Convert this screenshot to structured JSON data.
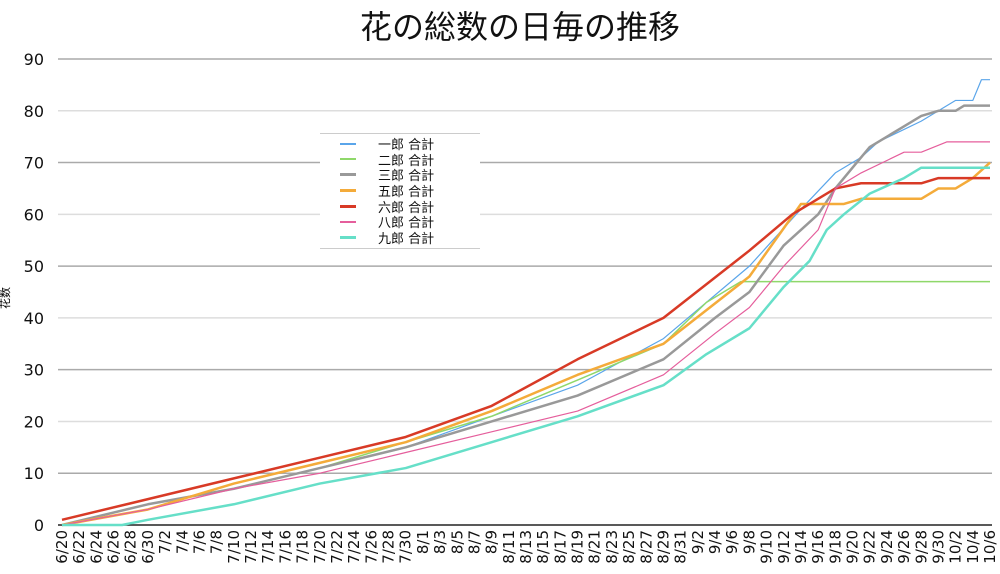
{
  "chart_data": {
    "type": "line",
    "title": "花の総数の日毎の推移",
    "xlabel": "",
    "ylabel": "花数",
    "ylim": [
      0,
      90
    ],
    "yticks": [
      0,
      10,
      20,
      30,
      40,
      50,
      60,
      70,
      80,
      90
    ],
    "start_date": "6/20",
    "x_tick_labels": [
      "6/20",
      "6/22",
      "6/24",
      "6/26",
      "6/28",
      "6/30",
      "7/2",
      "7/4",
      "7/6",
      "7/8",
      "7/10",
      "7/12",
      "7/14",
      "7/16",
      "7/18",
      "7/20",
      "7/22",
      "7/24",
      "7/26",
      "7/28",
      "7/30",
      "8/1",
      "8/3",
      "8/5",
      "8/7",
      "8/9",
      "8/11",
      "8/13",
      "8/15",
      "8/17",
      "8/19",
      "8/21",
      "8/23",
      "8/25",
      "8/27",
      "8/29",
      "8/31",
      "9/2",
      "9/4",
      "9/6",
      "9/8",
      "9/10",
      "9/12",
      "9/14",
      "9/16",
      "9/18",
      "9/20",
      "9/22",
      "9/24",
      "9/26",
      "9/28",
      "9/30",
      "10/2",
      "10/4",
      "10/6"
    ],
    "x_unit": "days since 6/20",
    "legend_position": "upper-center",
    "series": [
      {
        "name": "一郎 合計",
        "color": "#5aa5ea",
        "width": 1.2,
        "points": [
          [
            0,
            0
          ],
          [
            10,
            4
          ],
          [
            20,
            7
          ],
          [
            30,
            11
          ],
          [
            40,
            15
          ],
          [
            50,
            21
          ],
          [
            60,
            27
          ],
          [
            70,
            36
          ],
          [
            80,
            50
          ],
          [
            86,
            61
          ],
          [
            90,
            68
          ],
          [
            93,
            71
          ],
          [
            95,
            74
          ],
          [
            100,
            78
          ],
          [
            104,
            82
          ],
          [
            106,
            82
          ],
          [
            107,
            86
          ],
          [
            108,
            86
          ]
        ]
      },
      {
        "name": "二郎 合計",
        "color": "#8fd86a",
        "width": 1.5,
        "points": [
          [
            0,
            0
          ],
          [
            10,
            4
          ],
          [
            20,
            7
          ],
          [
            30,
            11
          ],
          [
            40,
            16
          ],
          [
            50,
            21
          ],
          [
            60,
            28
          ],
          [
            70,
            35
          ],
          [
            75,
            43
          ],
          [
            79,
            47
          ],
          [
            108,
            47
          ]
        ]
      },
      {
        "name": "三郎 合計",
        "color": "#999999",
        "width": 2.5,
        "points": [
          [
            0,
            0
          ],
          [
            10,
            4
          ],
          [
            20,
            7
          ],
          [
            30,
            11
          ],
          [
            40,
            15
          ],
          [
            50,
            20
          ],
          [
            60,
            25
          ],
          [
            70,
            32
          ],
          [
            76,
            40
          ],
          [
            80,
            45
          ],
          [
            84,
            54
          ],
          [
            88,
            60
          ],
          [
            90,
            65
          ],
          [
            92,
            69
          ],
          [
            94,
            73
          ],
          [
            100,
            79
          ],
          [
            102,
            80
          ],
          [
            104,
            80
          ],
          [
            105,
            81
          ],
          [
            108,
            81
          ]
        ]
      },
      {
        "name": "五郎 合計",
        "color": "#f4ab3a",
        "width": 2.5,
        "points": [
          [
            0,
            0
          ],
          [
            10,
            3
          ],
          [
            20,
            8
          ],
          [
            30,
            12
          ],
          [
            40,
            16
          ],
          [
            50,
            22
          ],
          [
            60,
            29
          ],
          [
            70,
            35
          ],
          [
            80,
            48
          ],
          [
            86,
            62
          ],
          [
            91,
            62
          ],
          [
            93,
            63
          ],
          [
            100,
            63
          ],
          [
            102,
            65
          ],
          [
            104,
            65
          ],
          [
            106,
            67
          ],
          [
            108,
            70
          ]
        ]
      },
      {
        "name": "六郎 合計",
        "color": "#d83a26",
        "width": 2.5,
        "points": [
          [
            0,
            1
          ],
          [
            10,
            5
          ],
          [
            20,
            9
          ],
          [
            30,
            13
          ],
          [
            40,
            17
          ],
          [
            50,
            23
          ],
          [
            60,
            32
          ],
          [
            70,
            40
          ],
          [
            80,
            53
          ],
          [
            85,
            60
          ],
          [
            90,
            65
          ],
          [
            93,
            66
          ],
          [
            100,
            66
          ],
          [
            102,
            67
          ],
          [
            108,
            67
          ]
        ]
      },
      {
        "name": "八郎 合計",
        "color": "#e55e9c",
        "width": 1.2,
        "points": [
          [
            0,
            0
          ],
          [
            10,
            3
          ],
          [
            20,
            7
          ],
          [
            30,
            10
          ],
          [
            40,
            14
          ],
          [
            50,
            18
          ],
          [
            60,
            22
          ],
          [
            70,
            29
          ],
          [
            76,
            37
          ],
          [
            80,
            42
          ],
          [
            84,
            50
          ],
          [
            88,
            57
          ],
          [
            90,
            65
          ],
          [
            93,
            68
          ],
          [
            98,
            72
          ],
          [
            100,
            72
          ],
          [
            103,
            74
          ],
          [
            108,
            74
          ]
        ]
      },
      {
        "name": "九郎 合計",
        "color": "#66dfc8",
        "width": 2.5,
        "points": [
          [
            0,
            0
          ],
          [
            7,
            0
          ],
          [
            10,
            1
          ],
          [
            20,
            4
          ],
          [
            30,
            8
          ],
          [
            40,
            11
          ],
          [
            50,
            16
          ],
          [
            60,
            21
          ],
          [
            70,
            27
          ],
          [
            75,
            33
          ],
          [
            80,
            38
          ],
          [
            84,
            46
          ],
          [
            87,
            51
          ],
          [
            89,
            57
          ],
          [
            91,
            60
          ],
          [
            94,
            64
          ],
          [
            98,
            67
          ],
          [
            100,
            69
          ],
          [
            108,
            69
          ]
        ]
      }
    ]
  }
}
